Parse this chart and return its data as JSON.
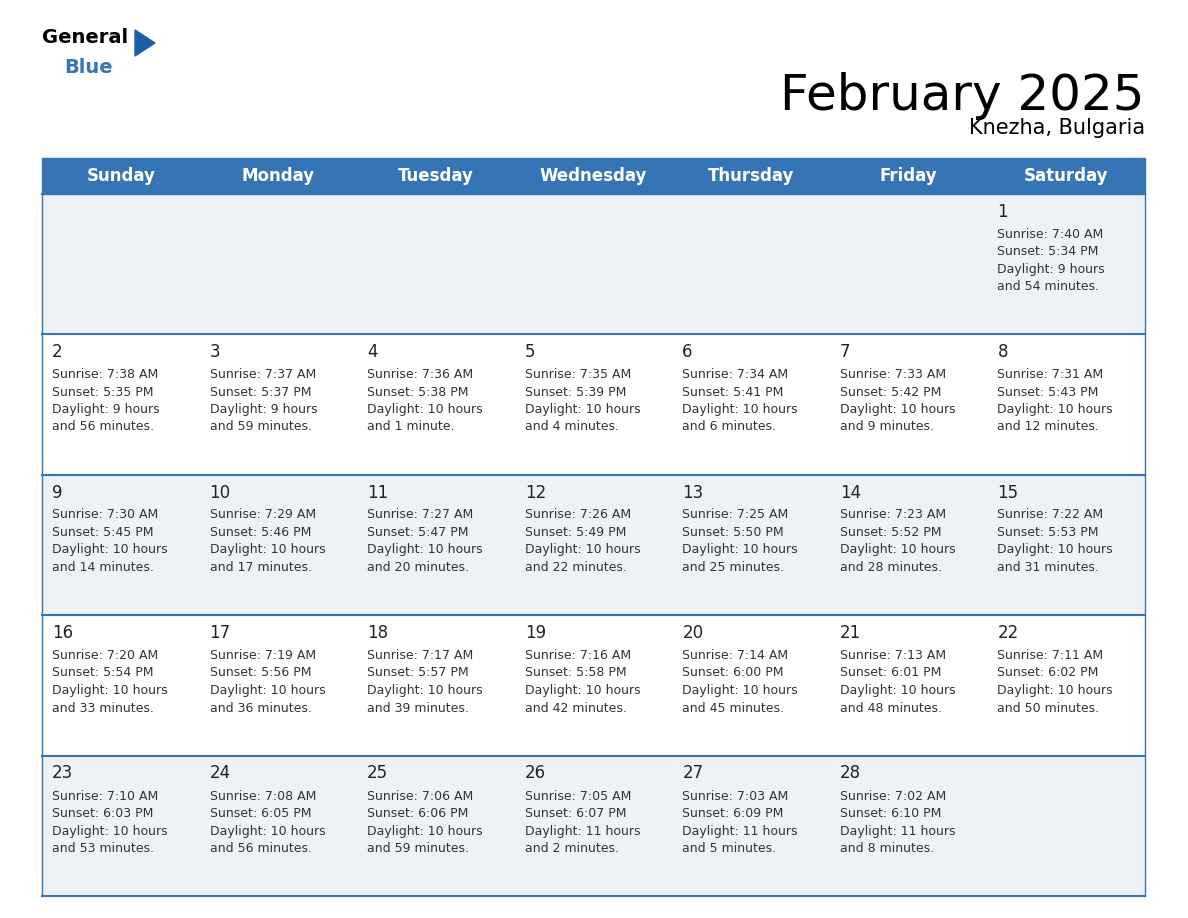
{
  "title": "February 2025",
  "subtitle": "Knezha, Bulgaria",
  "header_bg": "#3575b5",
  "header_text_color": "#ffffff",
  "cell_bg_light": "#eef2f7",
  "cell_bg_white": "#ffffff",
  "days_of_week": [
    "Sunday",
    "Monday",
    "Tuesday",
    "Wednesday",
    "Thursday",
    "Friday",
    "Saturday"
  ],
  "calendar_data": [
    [
      null,
      null,
      null,
      null,
      null,
      null,
      {
        "day": "1",
        "sunrise": "7:40 AM",
        "sunset": "5:34 PM",
        "daylight": "9 hours\nand 54 minutes."
      }
    ],
    [
      {
        "day": "2",
        "sunrise": "7:38 AM",
        "sunset": "5:35 PM",
        "daylight": "9 hours\nand 56 minutes."
      },
      {
        "day": "3",
        "sunrise": "7:37 AM",
        "sunset": "5:37 PM",
        "daylight": "9 hours\nand 59 minutes."
      },
      {
        "day": "4",
        "sunrise": "7:36 AM",
        "sunset": "5:38 PM",
        "daylight": "10 hours\nand 1 minute."
      },
      {
        "day": "5",
        "sunrise": "7:35 AM",
        "sunset": "5:39 PM",
        "daylight": "10 hours\nand 4 minutes."
      },
      {
        "day": "6",
        "sunrise": "7:34 AM",
        "sunset": "5:41 PM",
        "daylight": "10 hours\nand 6 minutes."
      },
      {
        "day": "7",
        "sunrise": "7:33 AM",
        "sunset": "5:42 PM",
        "daylight": "10 hours\nand 9 minutes."
      },
      {
        "day": "8",
        "sunrise": "7:31 AM",
        "sunset": "5:43 PM",
        "daylight": "10 hours\nand 12 minutes."
      }
    ],
    [
      {
        "day": "9",
        "sunrise": "7:30 AM",
        "sunset": "5:45 PM",
        "daylight": "10 hours\nand 14 minutes."
      },
      {
        "day": "10",
        "sunrise": "7:29 AM",
        "sunset": "5:46 PM",
        "daylight": "10 hours\nand 17 minutes."
      },
      {
        "day": "11",
        "sunrise": "7:27 AM",
        "sunset": "5:47 PM",
        "daylight": "10 hours\nand 20 minutes."
      },
      {
        "day": "12",
        "sunrise": "7:26 AM",
        "sunset": "5:49 PM",
        "daylight": "10 hours\nand 22 minutes."
      },
      {
        "day": "13",
        "sunrise": "7:25 AM",
        "sunset": "5:50 PM",
        "daylight": "10 hours\nand 25 minutes."
      },
      {
        "day": "14",
        "sunrise": "7:23 AM",
        "sunset": "5:52 PM",
        "daylight": "10 hours\nand 28 minutes."
      },
      {
        "day": "15",
        "sunrise": "7:22 AM",
        "sunset": "5:53 PM",
        "daylight": "10 hours\nand 31 minutes."
      }
    ],
    [
      {
        "day": "16",
        "sunrise": "7:20 AM",
        "sunset": "5:54 PM",
        "daylight": "10 hours\nand 33 minutes."
      },
      {
        "day": "17",
        "sunrise": "7:19 AM",
        "sunset": "5:56 PM",
        "daylight": "10 hours\nand 36 minutes."
      },
      {
        "day": "18",
        "sunrise": "7:17 AM",
        "sunset": "5:57 PM",
        "daylight": "10 hours\nand 39 minutes."
      },
      {
        "day": "19",
        "sunrise": "7:16 AM",
        "sunset": "5:58 PM",
        "daylight": "10 hours\nand 42 minutes."
      },
      {
        "day": "20",
        "sunrise": "7:14 AM",
        "sunset": "6:00 PM",
        "daylight": "10 hours\nand 45 minutes."
      },
      {
        "day": "21",
        "sunrise": "7:13 AM",
        "sunset": "6:01 PM",
        "daylight": "10 hours\nand 48 minutes."
      },
      {
        "day": "22",
        "sunrise": "7:11 AM",
        "sunset": "6:02 PM",
        "daylight": "10 hours\nand 50 minutes."
      }
    ],
    [
      {
        "day": "23",
        "sunrise": "7:10 AM",
        "sunset": "6:03 PM",
        "daylight": "10 hours\nand 53 minutes."
      },
      {
        "day": "24",
        "sunrise": "7:08 AM",
        "sunset": "6:05 PM",
        "daylight": "10 hours\nand 56 minutes."
      },
      {
        "day": "25",
        "sunrise": "7:06 AM",
        "sunset": "6:06 PM",
        "daylight": "10 hours\nand 59 minutes."
      },
      {
        "day": "26",
        "sunrise": "7:05 AM",
        "sunset": "6:07 PM",
        "daylight": "11 hours\nand 2 minutes."
      },
      {
        "day": "27",
        "sunrise": "7:03 AM",
        "sunset": "6:09 PM",
        "daylight": "11 hours\nand 5 minutes."
      },
      {
        "day": "28",
        "sunrise": "7:02 AM",
        "sunset": "6:10 PM",
        "daylight": "11 hours\nand 8 minutes."
      },
      null
    ]
  ],
  "divider_color": "#3575b5",
  "day_num_color": "#222222",
  "cell_text_color": "#333333",
  "title_fontsize": 36,
  "subtitle_fontsize": 15,
  "dow_fontsize": 12,
  "day_num_fontsize": 12,
  "cell_text_fontsize": 9
}
